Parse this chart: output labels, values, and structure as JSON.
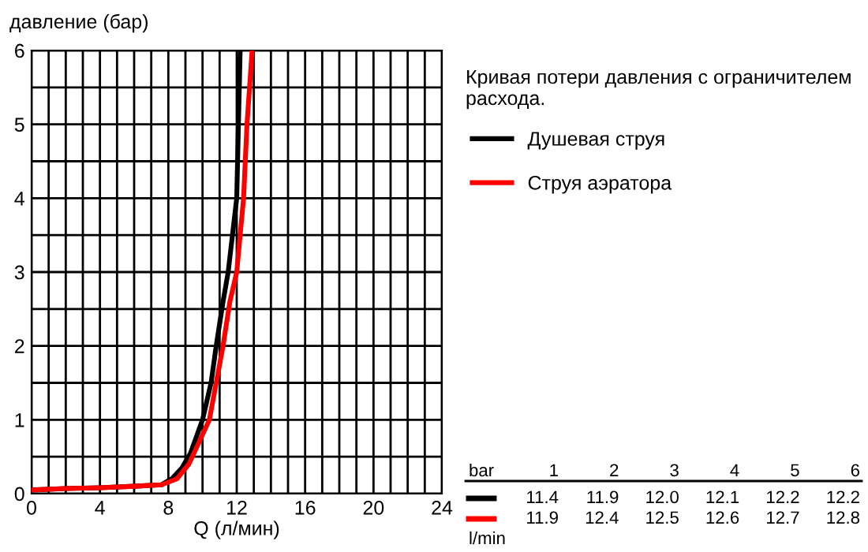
{
  "chart_data": {
    "type": "line",
    "title": "Кривая потери давления с ограничителем расхода.",
    "xlabel": "Q (л/мин)",
    "ylabel": "давление (бар)",
    "series": [
      {
        "name": "Душевая струя",
        "color": "#000000",
        "x": [
          0,
          2,
          4,
          6,
          7.6,
          8.2,
          8.8,
          9.3,
          10,
          10.5,
          10.8,
          11.2,
          11.5,
          12.0,
          12.1,
          12.2
        ],
        "values": [
          0.05,
          0.07,
          0.08,
          0.1,
          0.12,
          0.2,
          0.35,
          0.55,
          1.0,
          1.5,
          2.0,
          2.6,
          3.0,
          4.0,
          5.0,
          6.0
        ]
      },
      {
        "name": "Струя аэратора",
        "color": "#ff0000",
        "x": [
          0,
          2,
          4,
          6,
          7.6,
          8.5,
          9.2,
          9.8,
          10.4,
          10.8,
          11.2,
          11.6,
          12.0,
          12.4,
          12.6,
          12.9
        ],
        "values": [
          0.05,
          0.07,
          0.08,
          0.1,
          0.12,
          0.2,
          0.4,
          0.7,
          1.0,
          1.5,
          2.0,
          2.6,
          3.0,
          4.0,
          5.0,
          6.0
        ]
      }
    ],
    "xlim": [
      0,
      24
    ],
    "ylim": [
      0,
      6
    ],
    "xticks": [
      0,
      {
        "value": 1,
        "label": null
      },
      {
        "value": 2,
        "label": null
      },
      {
        "value": 3,
        "label": null
      },
      4,
      {
        "value": 5,
        "label": null
      },
      {
        "value": 6,
        "label": null
      },
      {
        "value": 7,
        "label": null
      },
      8,
      {
        "value": 9,
        "label": null
      },
      {
        "value": 10,
        "label": null
      },
      {
        "value": 11,
        "label": null
      },
      12,
      {
        "value": 13,
        "label": null
      },
      {
        "value": 14,
        "label": null
      },
      {
        "value": 15,
        "label": null
      },
      16,
      {
        "value": 17,
        "label": null
      },
      {
        "value": 18,
        "label": null
      },
      {
        "value": 19,
        "label": null
      },
      20,
      {
        "value": 21,
        "label": null
      },
      {
        "value": 22,
        "label": null
      },
      {
        "value": 23,
        "label": null
      },
      24
    ],
    "yticks": [
      0,
      {
        "value": 0.5,
        "label": null
      },
      1,
      {
        "value": 1.5,
        "label": null
      },
      2,
      {
        "value": 2.5,
        "label": null
      },
      3,
      {
        "value": 3.5,
        "label": null
      },
      4,
      {
        "value": 4.5,
        "label": null
      },
      5,
      {
        "value": 5.5,
        "label": null
      },
      6
    ],
    "grid": true,
    "legend": "right",
    "marker": "none",
    "line_style": "solid",
    "annotations": [
      "bar",
      "1",
      "2",
      "3",
      "4",
      "5",
      "6",
      "11.4",
      "11.9",
      "12.0",
      "12.1",
      "12.2",
      "12.2",
      "11.9",
      "12.4",
      "12.5",
      "12.6",
      "12.7",
      "12.8",
      "l/min"
    ]
  }
}
